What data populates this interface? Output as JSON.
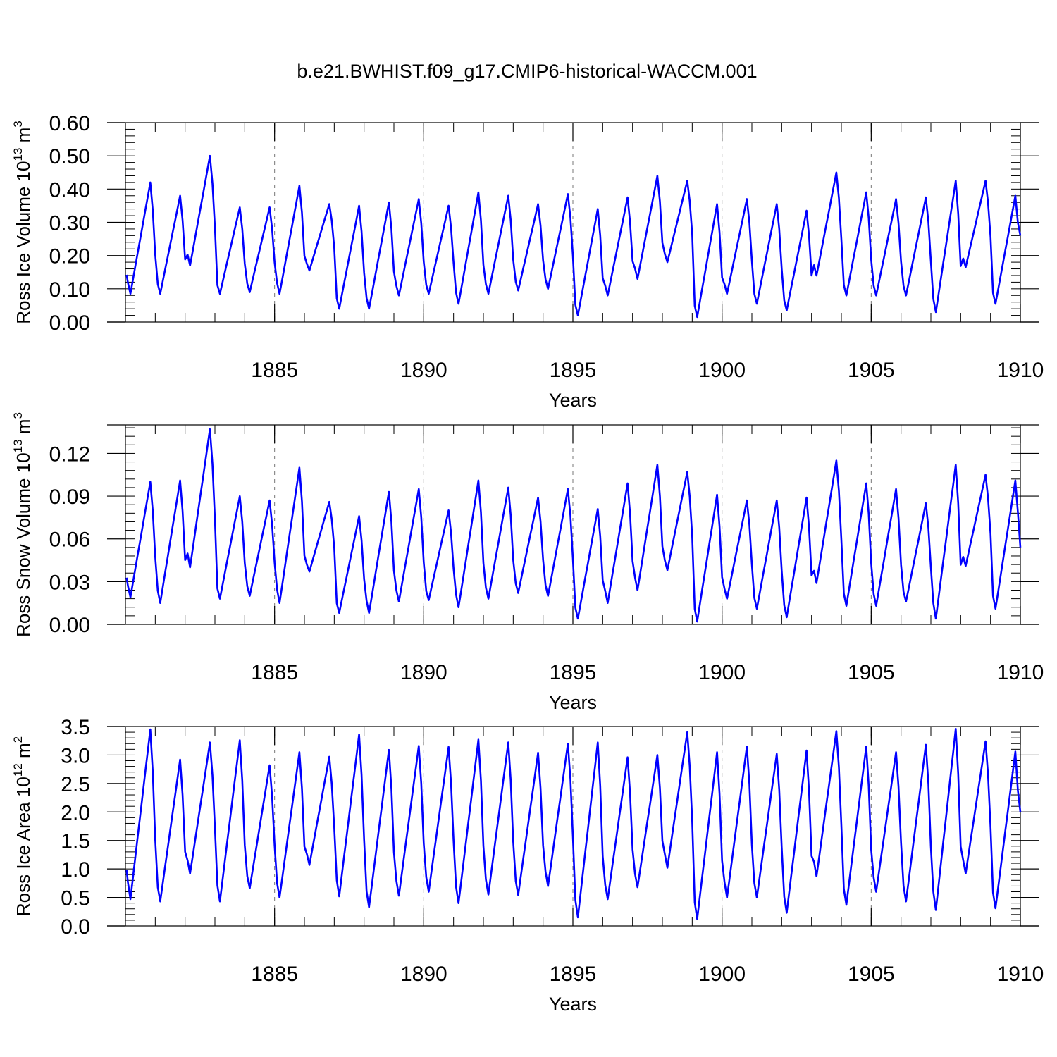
{
  "title": "b.e21.BWHIST.f09_g17.CMIP6-historical-WACCM.001",
  "line_color": "#0000ff",
  "chart_data": [
    {
      "type": "line",
      "ylabel": "Ross Ice Volume 10",
      "ylabel_exp": "13",
      "ylabel_unit": "m",
      "ylabel_unit_exp": "3",
      "xlabel": "Years",
      "xlim": [
        1880,
        1910
      ],
      "ylim": [
        0,
        0.6
      ],
      "yticks": [
        0.0,
        0.1,
        0.2,
        0.3,
        0.4,
        0.5,
        0.6
      ],
      "ytick_labels": [
        "0.00",
        "0.10",
        "0.20",
        "0.30",
        "0.40",
        "0.50",
        "0.60"
      ],
      "yminor_step": 0.02,
      "xticks": [
        1885,
        1890,
        1895,
        1900,
        1905,
        1910
      ],
      "xtick_labels": [
        "1885",
        "1890",
        "1895",
        "1900",
        "1905",
        "1910"
      ],
      "vlines": [
        1885,
        1890,
        1895,
        1900,
        1905
      ],
      "yearly_min": [
        0.085,
        0.085,
        0.17,
        0.085,
        0.09,
        0.085,
        0.155,
        0.04,
        0.04,
        0.08,
        0.085,
        0.055,
        0.085,
        0.095,
        0.1,
        0.02,
        0.08,
        0.13,
        0.18,
        0.015,
        0.085,
        0.055,
        0.035,
        0.14,
        0.08,
        0.08,
        0.08,
        0.03,
        0.165,
        0.055
      ],
      "yearly_max": [
        0.42,
        0.38,
        0.5,
        0.345,
        0.345,
        0.41,
        0.355,
        0.35,
        0.36,
        0.37,
        0.35,
        0.39,
        0.38,
        0.355,
        0.385,
        0.34,
        0.375,
        0.44,
        0.425,
        0.355,
        0.37,
        0.355,
        0.335,
        0.45,
        0.39,
        0.37,
        0.375,
        0.425,
        0.425,
        0.38
      ],
      "final_value": 0.26
    },
    {
      "type": "line",
      "ylabel": "Ross Snow Volume 10",
      "ylabel_exp": "13",
      "ylabel_unit": "m",
      "ylabel_unit_exp": "3",
      "xlabel": "Years",
      "xlim": [
        1880,
        1910
      ],
      "ylim": [
        0,
        0.14
      ],
      "yticks": [
        0.0,
        0.03,
        0.06,
        0.09,
        0.12
      ],
      "ytick_labels": [
        "0.00",
        "0.03",
        "0.06",
        "0.09",
        "0.12"
      ],
      "yminor_step": 0.006,
      "xticks": [
        1885,
        1890,
        1895,
        1900,
        1905,
        1910
      ],
      "xtick_labels": [
        "1885",
        "1890",
        "1895",
        "1900",
        "1905",
        "1910"
      ],
      "vlines": [
        1885,
        1890,
        1895,
        1900,
        1905
      ],
      "yearly_min": [
        0.019,
        0.015,
        0.04,
        0.018,
        0.02,
        0.015,
        0.037,
        0.008,
        0.008,
        0.016,
        0.017,
        0.012,
        0.018,
        0.022,
        0.02,
        0.004,
        0.015,
        0.024,
        0.038,
        0.002,
        0.018,
        0.011,
        0.005,
        0.029,
        0.013,
        0.013,
        0.016,
        0.004,
        0.041,
        0.011
      ],
      "yearly_max": [
        0.1,
        0.101,
        0.137,
        0.09,
        0.087,
        0.11,
        0.086,
        0.076,
        0.093,
        0.095,
        0.08,
        0.101,
        0.096,
        0.089,
        0.095,
        0.081,
        0.099,
        0.112,
        0.107,
        0.091,
        0.087,
        0.087,
        0.089,
        0.115,
        0.099,
        0.095,
        0.085,
        0.112,
        0.105,
        0.101
      ],
      "final_value": 0.054
    },
    {
      "type": "line",
      "ylabel": "Ross Ice Area 10",
      "ylabel_exp": "12",
      "ylabel_unit": "m",
      "ylabel_unit_exp": "2",
      "xlabel": "Years",
      "xlim": [
        1880,
        1910
      ],
      "ylim": [
        0,
        3.5
      ],
      "yticks": [
        0.0,
        0.5,
        1.0,
        1.5,
        2.0,
        2.5,
        3.0,
        3.5
      ],
      "ytick_labels": [
        "0.0",
        "0.5",
        "1.0",
        "1.5",
        "2.0",
        "2.5",
        "3.0",
        "3.5"
      ],
      "yminor_step": 0.1,
      "xticks": [
        1885,
        1890,
        1895,
        1900,
        1905,
        1910
      ],
      "xtick_labels": [
        "1885",
        "1890",
        "1895",
        "1900",
        "1905",
        "1910"
      ],
      "vlines": [
        1885,
        1890,
        1895,
        1900,
        1905
      ],
      "yearly_min": [
        0.47,
        0.43,
        0.92,
        0.43,
        0.66,
        0.5,
        1.07,
        0.52,
        0.33,
        0.53,
        0.6,
        0.4,
        0.55,
        0.54,
        0.7,
        0.15,
        0.47,
        0.68,
        1.02,
        0.12,
        0.5,
        0.5,
        0.23,
        0.87,
        0.37,
        0.6,
        0.43,
        0.28,
        0.92,
        0.31
      ],
      "yearly_max": [
        3.45,
        2.92,
        3.22,
        3.26,
        2.82,
        3.05,
        2.97,
        3.36,
        3.09,
        3.16,
        3.14,
        3.27,
        3.22,
        3.04,
        3.2,
        3.22,
        2.96,
        3.0,
        3.4,
        3.05,
        3.15,
        3.02,
        3.08,
        3.42,
        3.15,
        3.05,
        3.18,
        3.46,
        3.24,
        3.06
      ],
      "final_value": 2.0
    }
  ]
}
